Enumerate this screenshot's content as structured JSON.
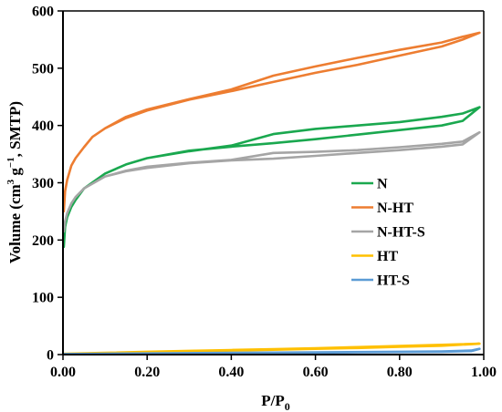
{
  "chart_data": {
    "type": "line",
    "xlabel_main": "P/P",
    "xlabel_sub": "0",
    "ylabel_parts": [
      "Volume (cm",
      "3",
      " g",
      "−1",
      ", SMTP)"
    ],
    "xlim": [
      0,
      1
    ],
    "ylim": [
      0,
      600
    ],
    "xticks": [
      0,
      0.2,
      0.4,
      0.6,
      0.8,
      1
    ],
    "xtick_labels": [
      "0.00",
      "0.20",
      "0.40",
      "0.60",
      "0.80",
      "1.00"
    ],
    "yticks": [
      0,
      100,
      200,
      300,
      400,
      500,
      600
    ],
    "ytick_labels": [
      "0",
      "100",
      "200",
      "300",
      "400",
      "500",
      "600"
    ],
    "grid": false,
    "legend_position": "right",
    "series": [
      {
        "name": "N",
        "color": "#1aa84f",
        "x": [
          0.002,
          0.005,
          0.01,
          0.02,
          0.03,
          0.05,
          0.1,
          0.15,
          0.2,
          0.3,
          0.4,
          0.5,
          0.6,
          0.7,
          0.8,
          0.9,
          0.95,
          0.99,
          0.95,
          0.9,
          0.8,
          0.7,
          0.6,
          0.5,
          0.4,
          0.3,
          0.2,
          0.15,
          0.1,
          0.05,
          0.03,
          0.02,
          0.01
        ],
        "y": [
          188,
          223,
          240,
          258,
          270,
          290,
          316,
          332,
          343,
          356,
          363,
          369,
          376,
          384,
          392,
          400,
          408,
          432,
          421,
          415,
          406,
          400,
          394,
          385,
          365,
          355,
          343,
          332,
          316,
          290,
          270,
          258,
          240
        ]
      },
      {
        "name": "N-HT",
        "color": "#ed7d31",
        "x": [
          0.002,
          0.005,
          0.01,
          0.02,
          0.03,
          0.05,
          0.07,
          0.1,
          0.15,
          0.2,
          0.3,
          0.4,
          0.5,
          0.6,
          0.7,
          0.8,
          0.9,
          0.95,
          0.99,
          0.95,
          0.9,
          0.8,
          0.7,
          0.6,
          0.5,
          0.4,
          0.3,
          0.2,
          0.15,
          0.1,
          0.07,
          0.05,
          0.03,
          0.02,
          0.01
        ],
        "y": [
          250,
          285,
          305,
          330,
          343,
          362,
          380,
          395,
          413,
          426,
          445,
          460,
          476,
          492,
          506,
          522,
          538,
          550,
          562,
          555,
          545,
          532,
          518,
          503,
          487,
          463,
          446,
          428,
          415,
          395,
          380,
          362,
          343,
          330,
          305
        ]
      },
      {
        "name": "N-HT-S",
        "color": "#a5a5a5",
        "x": [
          0.002,
          0.005,
          0.01,
          0.02,
          0.03,
          0.05,
          0.1,
          0.15,
          0.2,
          0.3,
          0.4,
          0.5,
          0.6,
          0.7,
          0.8,
          0.9,
          0.95,
          0.99,
          0.95,
          0.9,
          0.8,
          0.7,
          0.6,
          0.5,
          0.4,
          0.3,
          0.2,
          0.15,
          0.1,
          0.05,
          0.03,
          0.02,
          0.01
        ],
        "y": [
          215,
          232,
          247,
          264,
          275,
          290,
          311,
          320,
          326,
          334,
          339,
          342,
          347,
          352,
          357,
          363,
          367,
          388,
          372,
          368,
          362,
          357,
          354,
          352,
          340,
          335,
          328,
          321,
          311,
          290,
          275,
          264,
          247
        ]
      },
      {
        "name": "HT",
        "color": "#ffc000",
        "x": [
          0.002,
          0.1,
          0.2,
          0.3,
          0.4,
          0.5,
          0.6,
          0.7,
          0.8,
          0.9,
          0.99,
          0.9,
          0.8,
          0.7,
          0.6,
          0.5,
          0.4,
          0.3,
          0.2,
          0.1,
          0.002
        ],
        "y": [
          1,
          2.5,
          4,
          5.5,
          7,
          8.5,
          10,
          11.5,
          13.5,
          15.5,
          19,
          17,
          15,
          13,
          11,
          9.5,
          8,
          6.5,
          5,
          3,
          1.5
        ]
      },
      {
        "name": "HT-S",
        "color": "#5b9bd5",
        "x": [
          0.002,
          0.1,
          0.2,
          0.3,
          0.4,
          0.5,
          0.6,
          0.7,
          0.8,
          0.9,
          0.97,
          0.99,
          0.97,
          0.9,
          0.8,
          0.6,
          0.4,
          0.2,
          0.002
        ],
        "y": [
          0.5,
          1,
          1.5,
          2,
          2.5,
          3,
          3.5,
          4,
          4.5,
          5,
          6,
          10,
          7,
          5.5,
          5,
          4,
          3,
          2,
          1
        ]
      }
    ]
  }
}
